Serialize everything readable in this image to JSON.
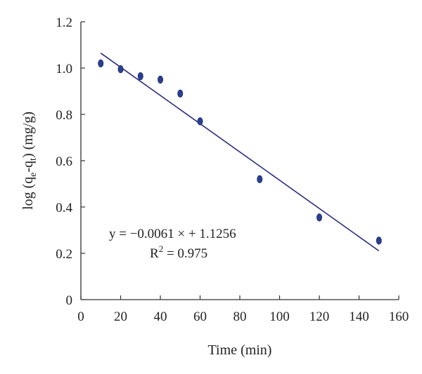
{
  "chart_data": {
    "type": "scatter",
    "title": "",
    "xlabel": "Time (min)",
    "ylabel": {
      "prefix": "log (q",
      "sub1": "e",
      "middle": "-q",
      "sub2": "t",
      "suffix": ") (mg/g)"
    },
    "xlim": [
      0,
      160
    ],
    "ylim": [
      0,
      1.2
    ],
    "xticks": [
      0,
      20,
      40,
      60,
      80,
      100,
      120,
      140,
      160
    ],
    "yticks": [
      0,
      0.2,
      0.4,
      0.6,
      0.8,
      1.0,
      1.2
    ],
    "xtick_labels": [
      "0",
      "20",
      "40",
      "60",
      "80",
      "100",
      "120",
      "140",
      "160"
    ],
    "ytick_labels": [
      "0",
      "0.2",
      "0.4",
      "0.6",
      "0.8",
      "1.0",
      "1.2"
    ],
    "grid": false,
    "series": [
      {
        "x": [
          10,
          20,
          30,
          40,
          50,
          60,
          90,
          120,
          150
        ],
        "y": [
          1.02,
          0.995,
          0.965,
          0.95,
          0.89,
          0.77,
          0.52,
          0.355,
          0.255
        ],
        "color": "#2b3f8f"
      }
    ],
    "fit_line": {
      "slope": -0.0061,
      "intercept": 1.1256,
      "x_range": [
        10,
        150
      ],
      "color": "#2a2a82"
    },
    "annotations": {
      "equation": "y = −0.0061 × + 1.1256",
      "r2_prefix": "R",
      "r2_sup": "2",
      "r2_value": " = 0.975"
    }
  }
}
